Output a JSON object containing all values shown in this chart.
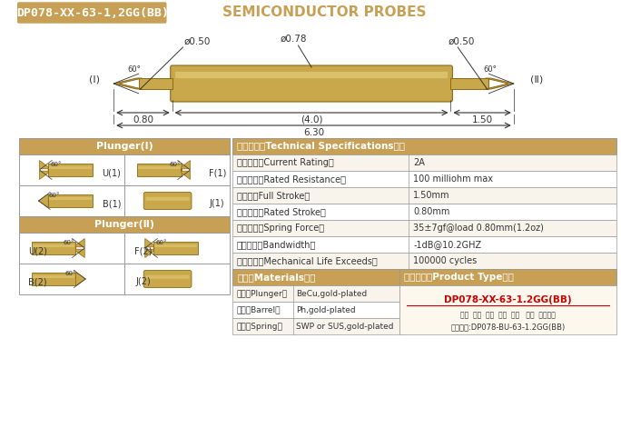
{
  "title_part1": "DP078-XX-63-1,2GG(BB)",
  "title_part2": "SEMICONDUCTOR PROBES",
  "bg_color": "#ffffff",
  "gold_color": "#C8A84B",
  "tan_header": "#C8A055",
  "border_color": "#999999",
  "dim_color": "#333333",
  "dim_phi050_left": "ø0.50",
  "dim_phi078": "ø0.78",
  "dim_phi050_right": "ø0.50",
  "dim_080": "0.80",
  "dim_40": "(4.0)",
  "dim_150": "1.50",
  "dim_630": "6.30",
  "label_I": "(Ⅰ)",
  "label_II": "(Ⅱ)",
  "angle_60": "60°",
  "specs": [
    [
      "阅定电流（Current Rating）",
      "2A"
    ],
    [
      "阅定电阱（Rated Resistance）",
      "100 milliohm max"
    ],
    [
      "满行程（Full Stroke）",
      "1.50mm"
    ],
    [
      "额定行程（Rated Stroke）",
      "0.80mm"
    ],
    [
      "额定弹力（Spring Force）",
      "35±7gf@load 0.80mm(1.2oz)"
    ],
    [
      "频率带宽（Bandwidth）",
      "-1dB@10.2GHZ"
    ],
    [
      "测试寿命（Mechanical Life Exceeds）",
      "100000 cycles"
    ]
  ],
  "tech_header": "技术要求（Technical Specifications）：",
  "materials_header": "材质（Materials）：",
  "materials": [
    [
      "针头（Plunger）",
      "BeCu,gold-plated"
    ],
    [
      "针管（Barrel）",
      "Ph,gold-plated"
    ],
    [
      "弹簧（Spring）",
      "SWP or SUS,gold-plated"
    ]
  ],
  "product_header": "成品型号（Product Type）：",
  "product_type": "DP078-XX-63-1.2GG(BB)",
  "product_labels": "系列  规格  头型  总长  弹力   镀金  针头材质",
  "order_example": "订购举例:DP078-BU-63-1.2GG(BB)",
  "plunger1_header": "Plunger(Ⅰ)",
  "plunger2_header": "Plunger(Ⅱ)"
}
